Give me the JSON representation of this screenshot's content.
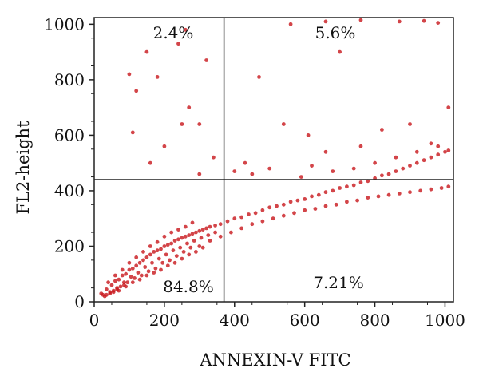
{
  "chart_data": {
    "type": "scatter",
    "title": "",
    "xlabel": "ANNEXIN-V FITC",
    "ylabel": "FL2-height",
    "xlim": [
      0,
      1024
    ],
    "ylim": [
      0,
      1024
    ],
    "xticks": [
      "0",
      "200",
      "400",
      "600",
      "800",
      "1000"
    ],
    "yticks": [
      "0",
      "200",
      "400",
      "600",
      "800",
      "1000"
    ],
    "gates": {
      "x": 370,
      "y": 440
    },
    "quadrant_labels": {
      "upper_left": "2.4%",
      "upper_right": "5.6%",
      "lower_left": "84.8%",
      "lower_right": "7.21%"
    },
    "point_color": "#c8171b",
    "grid": false,
    "series": [
      {
        "values": [
          [
            20,
            30
          ],
          [
            35,
            45
          ],
          [
            50,
            60
          ],
          [
            60,
            75
          ],
          [
            70,
            80
          ],
          [
            80,
            95
          ],
          [
            90,
            100
          ],
          [
            100,
            115
          ],
          [
            110,
            120
          ],
          [
            120,
            130
          ],
          [
            130,
            140
          ],
          [
            140,
            150
          ],
          [
            150,
            160
          ],
          [
            160,
            170
          ],
          [
            170,
            180
          ],
          [
            180,
            185
          ],
          [
            190,
            190
          ],
          [
            200,
            200
          ],
          [
            210,
            205
          ],
          [
            220,
            210
          ],
          [
            230,
            220
          ],
          [
            240,
            225
          ],
          [
            250,
            230
          ],
          [
            260,
            235
          ],
          [
            270,
            240
          ],
          [
            280,
            245
          ],
          [
            290,
            250
          ],
          [
            300,
            255
          ],
          [
            310,
            260
          ],
          [
            320,
            265
          ],
          [
            330,
            270
          ],
          [
            345,
            275
          ],
          [
            360,
            280
          ],
          [
            380,
            290
          ],
          [
            400,
            300
          ],
          [
            420,
            305
          ],
          [
            440,
            315
          ],
          [
            460,
            320
          ],
          [
            480,
            330
          ],
          [
            500,
            340
          ],
          [
            520,
            345
          ],
          [
            540,
            350
          ],
          [
            560,
            360
          ],
          [
            580,
            365
          ],
          [
            600,
            370
          ],
          [
            620,
            380
          ],
          [
            640,
            385
          ],
          [
            660,
            395
          ],
          [
            680,
            400
          ],
          [
            700,
            410
          ],
          [
            720,
            415
          ],
          [
            740,
            420
          ],
          [
            760,
            430
          ],
          [
            780,
            435
          ],
          [
            800,
            445
          ],
          [
            820,
            455
          ],
          [
            840,
            460
          ],
          [
            860,
            470
          ],
          [
            880,
            480
          ],
          [
            900,
            490
          ],
          [
            920,
            500
          ],
          [
            940,
            510
          ],
          [
            960,
            520
          ],
          [
            980,
            530
          ],
          [
            1000,
            540
          ],
          [
            1010,
            545
          ],
          [
            30,
            20
          ],
          [
            45,
            35
          ],
          [
            55,
            40
          ],
          [
            65,
            50
          ],
          [
            85,
            60
          ],
          [
            95,
            70
          ],
          [
            115,
            85
          ],
          [
            135,
            95
          ],
          [
            155,
            110
          ],
          [
            175,
            120
          ],
          [
            195,
            140
          ],
          [
            215,
            150
          ],
          [
            235,
            165
          ],
          [
            255,
            180
          ],
          [
            275,
            195
          ],
          [
            300,
            200
          ],
          [
            330,
            220
          ],
          [
            360,
            235
          ],
          [
            390,
            250
          ],
          [
            420,
            265
          ],
          [
            450,
            280
          ],
          [
            480,
            290
          ],
          [
            510,
            300
          ],
          [
            540,
            310
          ],
          [
            570,
            320
          ],
          [
            600,
            330
          ],
          [
            630,
            335
          ],
          [
            660,
            345
          ],
          [
            690,
            350
          ],
          [
            720,
            360
          ],
          [
            750,
            365
          ],
          [
            780,
            375
          ],
          [
            810,
            380
          ],
          [
            840,
            385
          ],
          [
            870,
            390
          ],
          [
            900,
            395
          ],
          [
            930,
            400
          ],
          [
            960,
            405
          ],
          [
            990,
            410
          ],
          [
            1010,
            415
          ],
          [
            40,
            70
          ],
          [
            60,
            95
          ],
          [
            80,
            115
          ],
          [
            100,
            140
          ],
          [
            120,
            160
          ],
          [
            140,
            180
          ],
          [
            160,
            200
          ],
          [
            180,
            215
          ],
          [
            200,
            235
          ],
          [
            220,
            250
          ],
          [
            240,
            260
          ],
          [
            260,
            270
          ],
          [
            280,
            285
          ],
          [
            70,
            40
          ],
          [
            90,
            55
          ],
          [
            110,
            70
          ],
          [
            130,
            80
          ],
          [
            150,
            95
          ],
          [
            170,
            105
          ],
          [
            190,
            115
          ],
          [
            210,
            130
          ],
          [
            230,
            140
          ],
          [
            250,
            155
          ],
          [
            270,
            170
          ],
          [
            290,
            180
          ],
          [
            310,
            195
          ],
          [
            25,
            25
          ],
          [
            35,
            25
          ],
          [
            45,
            30
          ],
          [
            55,
            35
          ],
          [
            65,
            45
          ],
          [
            75,
            55
          ],
          [
            85,
            70
          ],
          [
            105,
            90
          ],
          [
            125,
            105
          ],
          [
            145,
            125
          ],
          [
            165,
            140
          ],
          [
            185,
            155
          ],
          [
            205,
            170
          ],
          [
            225,
            185
          ],
          [
            245,
            195
          ],
          [
            265,
            210
          ],
          [
            285,
            220
          ],
          [
            305,
            230
          ],
          [
            325,
            240
          ],
          [
            345,
            250
          ],
          [
            180,
            810
          ],
          [
            270,
            700
          ],
          [
            300,
            640
          ],
          [
            320,
            870
          ],
          [
            150,
            900
          ],
          [
            100,
            820
          ],
          [
            160,
            500
          ],
          [
            110,
            610
          ],
          [
            240,
            930
          ],
          [
            260,
            980
          ],
          [
            430,
            500
          ],
          [
            540,
            640
          ],
          [
            610,
            600
          ],
          [
            660,
            540
          ],
          [
            700,
            900
          ],
          [
            760,
            560
          ],
          [
            820,
            620
          ],
          [
            900,
            640
          ],
          [
            960,
            570
          ],
          [
            1010,
            700
          ],
          [
            470,
            810
          ],
          [
            560,
            1000
          ],
          [
            660,
            1010
          ],
          [
            760,
            1015
          ],
          [
            870,
            1010
          ],
          [
            940,
            1012
          ],
          [
            980,
            1005
          ],
          [
            120,
            760
          ],
          [
            200,
            560
          ],
          [
            250,
            640
          ],
          [
            300,
            460
          ],
          [
            340,
            520
          ],
          [
            400,
            470
          ],
          [
            450,
            460
          ],
          [
            500,
            480
          ],
          [
            590,
            450
          ],
          [
            620,
            490
          ],
          [
            680,
            470
          ],
          [
            740,
            480
          ],
          [
            800,
            500
          ],
          [
            860,
            520
          ],
          [
            920,
            540
          ],
          [
            980,
            560
          ]
        ]
      }
    ]
  }
}
